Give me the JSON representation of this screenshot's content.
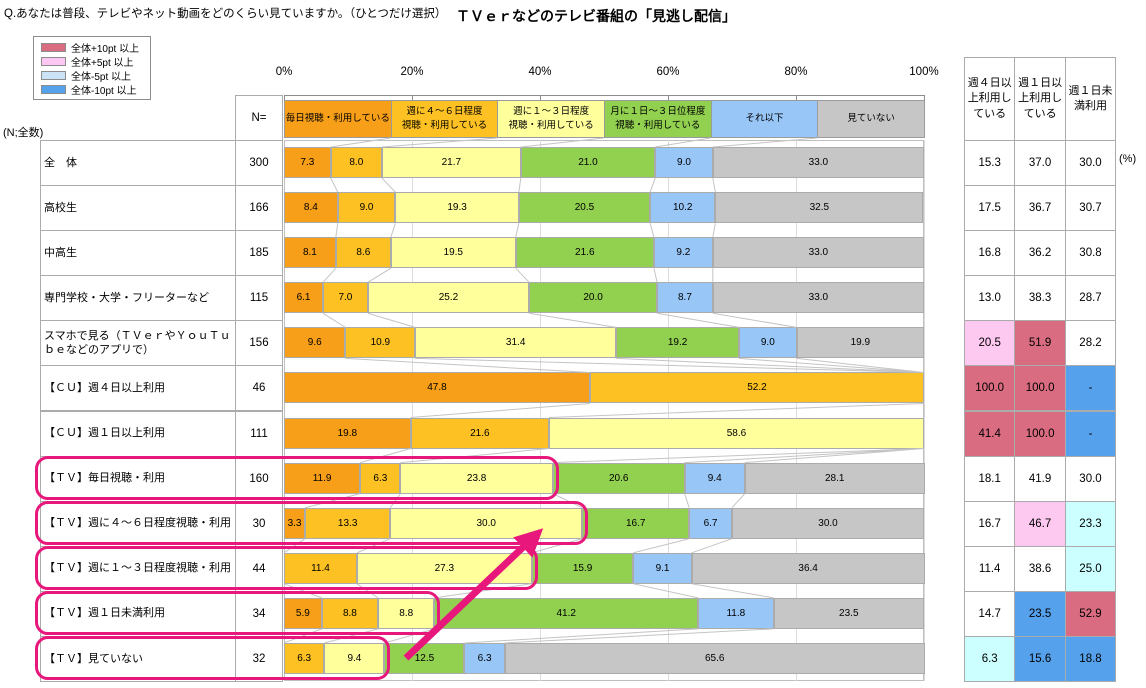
{
  "header": {
    "question": "Q.あなたは普段、テレビやネット動画をどのくらい見ていますか。（ひとつだけ選択）",
    "title": "ＴＶｅｒなどのテレビ番組の「見逃し配信」"
  },
  "diff_legend": {
    "items": [
      {
        "label": "全体+10pt 以上",
        "key": "plus10"
      },
      {
        "label": "全体+5pt 以上",
        "key": "plus5"
      },
      {
        "label": "全体-5pt 以上",
        "key": "minus5"
      },
      {
        "label": "全体-10pt 以上",
        "key": "minus10"
      }
    ],
    "swatch_colors": {
      "plus10": "#D96C80",
      "plus5": "#FDC7F3",
      "minus5": "#CBE3F6",
      "minus10": "#55A1EC"
    }
  },
  "cell_colors": {
    "plus10": "#D96C80",
    "plus5": "#FEC9F1",
    "minus5": "#CCFFFF",
    "minus10": "#55A1EC",
    "none": "#FFFFFF"
  },
  "left_table": {
    "n_caption": "(N;全数)",
    "n_header": "N="
  },
  "summary_table": {
    "headers": [
      "週４日以上利用している",
      "週１日以上利用している",
      "週１日未満利用"
    ],
    "unit": "(%)"
  },
  "annotation": {
    "highlight_color": "#E7177B"
  },
  "chart_data": {
    "type": "bar",
    "stacked": true,
    "orientation": "horizontal",
    "xlim": [
      0,
      100
    ],
    "axis_ticks": [
      "0%",
      "20%",
      "40%",
      "60%",
      "80%",
      "100%"
    ],
    "grid": true,
    "series": [
      {
        "name": "毎日視聴・利用している",
        "color": "#F79F18",
        "label_lines": [
          "毎日視聴・利用している"
        ]
      },
      {
        "name": "週に４～６日程度視聴・利用している",
        "color": "#FDC123",
        "label_lines": [
          "週に４～６日程度",
          "視聴・利用している"
        ]
      },
      {
        "name": "週に１～３日程度視聴・利用している",
        "color": "#FFFF9C",
        "label_lines": [
          "週に１～３日程度",
          "視聴・利用している"
        ]
      },
      {
        "name": "月に１日～３日位程度視聴・利用している",
        "color": "#92D050",
        "label_lines": [
          "月に１日～３日位程度",
          "視聴・利用している"
        ]
      },
      {
        "name": "それ以下",
        "color": "#97C6F7",
        "label_lines": [
          "それ以下"
        ]
      },
      {
        "name": "見ていない",
        "color": "#C6C6C6",
        "label_lines": [
          "見ていない"
        ]
      }
    ],
    "rows": [
      {
        "label": "全　体",
        "n": "300",
        "values": [
          7.3,
          8.0,
          21.7,
          21.0,
          9.0,
          33.0
        ],
        "summary": [
          {
            "v": "15.3",
            "hl": "none"
          },
          {
            "v": "37.0",
            "hl": "none"
          },
          {
            "v": "30.0",
            "hl": "none"
          }
        ],
        "highlighted": false
      },
      {
        "label": "高校生",
        "n": "166",
        "values": [
          8.4,
          9.0,
          19.3,
          20.5,
          10.2,
          32.5
        ],
        "summary": [
          {
            "v": "17.5",
            "hl": "none"
          },
          {
            "v": "36.7",
            "hl": "none"
          },
          {
            "v": "30.7",
            "hl": "none"
          }
        ],
        "highlighted": false
      },
      {
        "label": "中高生",
        "n": "185",
        "values": [
          8.1,
          8.6,
          19.5,
          21.6,
          9.2,
          33.0
        ],
        "summary": [
          {
            "v": "16.8",
            "hl": "none"
          },
          {
            "v": "36.2",
            "hl": "none"
          },
          {
            "v": "30.8",
            "hl": "none"
          }
        ],
        "highlighted": false
      },
      {
        "label": "専門学校・大学・フリーターなど",
        "n": "115",
        "values": [
          6.1,
          7.0,
          25.2,
          20.0,
          8.7,
          33.0
        ],
        "summary": [
          {
            "v": "13.0",
            "hl": "none"
          },
          {
            "v": "38.3",
            "hl": "none"
          },
          {
            "v": "28.7",
            "hl": "none"
          }
        ],
        "highlighted": false
      },
      {
        "label": "スマホで見る（ＴＶｅｒやＹｏｕＴｕｂｅなどのアプリで）",
        "n": "156",
        "values": [
          9.6,
          10.9,
          31.4,
          19.2,
          9.0,
          19.9
        ],
        "summary": [
          {
            "v": "20.5",
            "hl": "plus5"
          },
          {
            "v": "51.9",
            "hl": "plus10"
          },
          {
            "v": "28.2",
            "hl": "none"
          }
        ],
        "highlighted": false
      },
      {
        "label": "【ＣＵ】週４日以上利用",
        "n": "46",
        "values": [
          47.8,
          52.2,
          0,
          0,
          0,
          0
        ],
        "summary": [
          {
            "v": "100.0",
            "hl": "plus10"
          },
          {
            "v": "100.0",
            "hl": "plus10"
          },
          {
            "v": "-",
            "hl": "minus10"
          }
        ],
        "highlighted": false
      },
      {
        "label": "【ＣＵ】週１日以上利用",
        "n": "111",
        "values": [
          19.8,
          21.6,
          58.6,
          0,
          0,
          0
        ],
        "summary": [
          {
            "v": "41.4",
            "hl": "plus10"
          },
          {
            "v": "100.0",
            "hl": "plus10"
          },
          {
            "v": "-",
            "hl": "minus10"
          }
        ],
        "highlighted": false
      },
      {
        "label": "【ＴＶ】毎日視聴・利用",
        "n": "160",
        "values": [
          11.9,
          6.3,
          23.8,
          20.6,
          9.4,
          28.1
        ],
        "summary": [
          {
            "v": "18.1",
            "hl": "none"
          },
          {
            "v": "41.9",
            "hl": "none"
          },
          {
            "v": "30.0",
            "hl": "none"
          }
        ],
        "highlighted": true
      },
      {
        "label": "【ＴＶ】週に４～６日程度視聴・利用",
        "n": "30",
        "values": [
          3.3,
          13.3,
          30.0,
          16.7,
          6.7,
          30.0
        ],
        "summary": [
          {
            "v": "16.7",
            "hl": "none"
          },
          {
            "v": "46.7",
            "hl": "plus5"
          },
          {
            "v": "23.3",
            "hl": "minus5"
          }
        ],
        "highlighted": true
      },
      {
        "label": "【ＴＶ】週に１～３日程度視聴・利用",
        "n": "44",
        "values": [
          0,
          11.4,
          27.3,
          15.9,
          9.1,
          36.4
        ],
        "summary": [
          {
            "v": "11.4",
            "hl": "none"
          },
          {
            "v": "38.6",
            "hl": "none"
          },
          {
            "v": "25.0",
            "hl": "minus5"
          }
        ],
        "highlighted": true
      },
      {
        "label": "【ＴＶ】週１日未満利用",
        "n": "34",
        "values": [
          5.9,
          8.8,
          8.8,
          41.2,
          11.8,
          23.5
        ],
        "summary": [
          {
            "v": "14.7",
            "hl": "none"
          },
          {
            "v": "23.5",
            "hl": "minus10"
          },
          {
            "v": "52.9",
            "hl": "plus10"
          }
        ],
        "highlighted": true
      },
      {
        "label": "【ＴＶ】見ていない",
        "n": "32",
        "values": [
          0,
          6.3,
          9.4,
          12.5,
          6.3,
          65.6
        ],
        "summary": [
          {
            "v": "6.3",
            "hl": "minus5"
          },
          {
            "v": "15.6",
            "hl": "minus10"
          },
          {
            "v": "18.8",
            "hl": "minus10"
          }
        ],
        "highlighted": true
      }
    ]
  }
}
